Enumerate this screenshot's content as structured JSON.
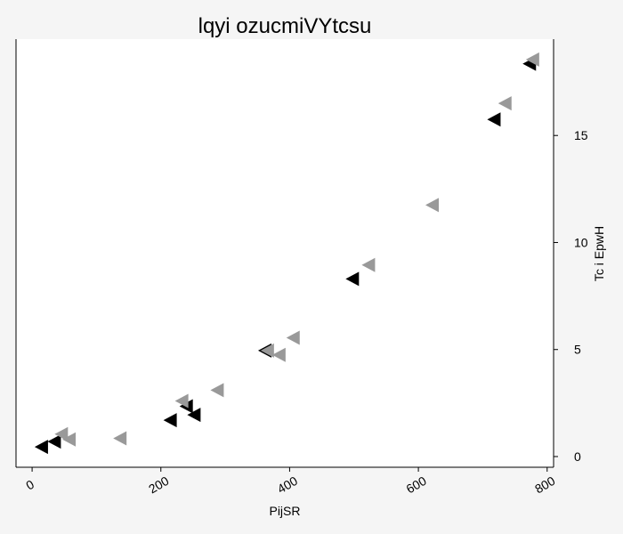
{
  "chart_data": {
    "type": "scatter",
    "title": "lqyi ozucmiVYtcsu",
    "xlabel": "PijSR",
    "ylabel": "Tc  i EpwH",
    "xlim": [
      -25,
      810
    ],
    "ylim": [
      -0.5,
      19.5
    ],
    "x_ticks": [
      "0",
      "200",
      "400",
      "600",
      "800"
    ],
    "y_ticks": [
      "0",
      "5",
      "10",
      "15"
    ],
    "y_axis_side": "right",
    "grid": false,
    "colors": {
      "background": "#f5f5f5",
      "plot_bg": "#ffffff",
      "axis": "#000000"
    },
    "series": [
      {
        "color": "#000000",
        "marker": "triangle-left",
        "points": [
          [
            15,
            0.45
          ],
          [
            35,
            0.7
          ],
          [
            215,
            1.7
          ],
          [
            240,
            2.35
          ],
          [
            252,
            1.95
          ],
          [
            362,
            4.95
          ],
          [
            498,
            8.3
          ],
          [
            718,
            15.75
          ],
          [
            773,
            18.35
          ]
        ]
      },
      {
        "color": "#999999",
        "marker": "triangle-left",
        "points": [
          [
            46,
            1.05
          ],
          [
            58,
            0.8
          ],
          [
            137,
            0.85
          ],
          [
            233,
            2.6
          ],
          [
            288,
            3.1
          ],
          [
            366,
            4.95
          ],
          [
            384,
            4.75
          ],
          [
            406,
            5.55
          ],
          [
            523,
            8.95
          ],
          [
            622,
            11.75
          ],
          [
            735,
            16.5
          ],
          [
            778,
            18.55
          ]
        ]
      }
    ]
  }
}
